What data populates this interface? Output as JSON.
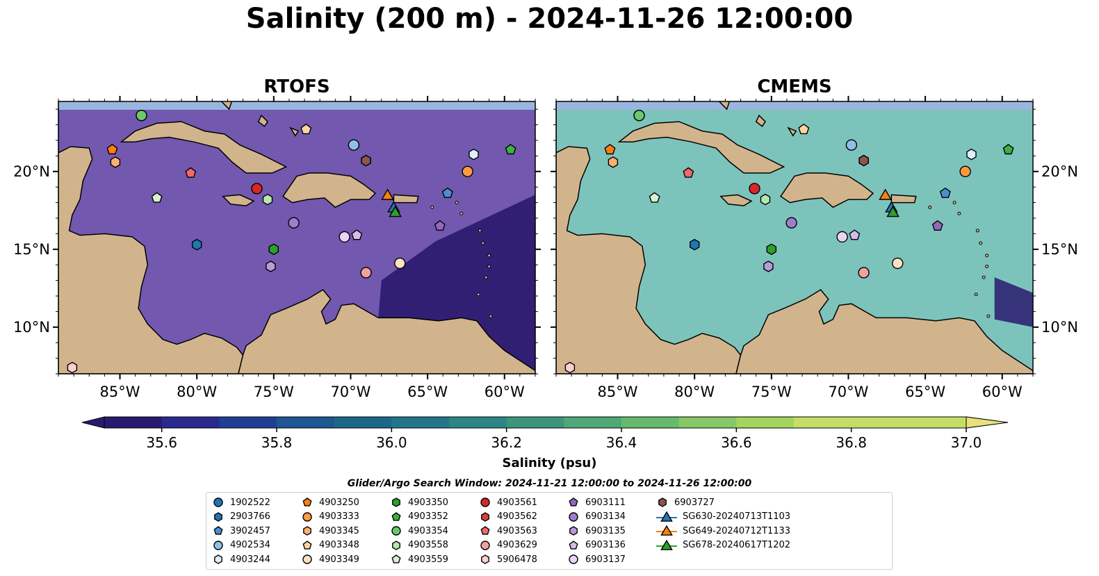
{
  "title": "Salinity (200 m) - 2024-11-26 12:00:00",
  "panels": [
    {
      "title": "RTOFS",
      "variant": "rtofs"
    },
    {
      "title": "CMEMS",
      "variant": "cmems"
    }
  ],
  "axes": {
    "lon_range": [
      -89,
      -58
    ],
    "lat_range": [
      7,
      24.5
    ],
    "x_ticks": [
      {
        "value": -85,
        "label": "85°W"
      },
      {
        "value": -80,
        "label": "80°W"
      },
      {
        "value": -75,
        "label": "75°W"
      },
      {
        "value": -70,
        "label": "70°W"
      },
      {
        "value": -65,
        "label": "65°W"
      },
      {
        "value": -60,
        "label": "60°W"
      }
    ],
    "y_ticks": [
      {
        "value": 10,
        "label": "10°N"
      },
      {
        "value": 15,
        "label": "15°N"
      },
      {
        "value": 20,
        "label": "20°N"
      }
    ]
  },
  "colorbar": {
    "label": "Salinity (psu)",
    "min": 35.5,
    "max": 37.0,
    "step": 0.1,
    "ticks": [
      {
        "value": 35.6,
        "label": "35.6"
      },
      {
        "value": 35.8,
        "label": "35.8"
      },
      {
        "value": 36.0,
        "label": "36.0"
      },
      {
        "value": 36.2,
        "label": "36.2"
      },
      {
        "value": 36.4,
        "label": "36.4"
      },
      {
        "value": 36.6,
        "label": "36.6"
      },
      {
        "value": 36.8,
        "label": "36.8"
      },
      {
        "value": 37.0,
        "label": "37.0"
      }
    ],
    "colors": [
      "#2a1a6e",
      "#2a2a8e",
      "#1f3f94",
      "#1d5690",
      "#1c668c",
      "#237689",
      "#2c8584",
      "#3a957c",
      "#50a777",
      "#67b96d",
      "#86c766",
      "#a4d45c",
      "#c6dd65",
      "#e6e17a"
    ]
  },
  "search_window": "Glider/Argo Search Window: 2024-11-21 12:00:00 to 2024-11-26 12:00:00",
  "legend": [
    {
      "label": "1902522",
      "marker": "circle",
      "color": "#1f77b4"
    },
    {
      "label": "2903766",
      "marker": "hexagon",
      "color": "#1f77b4"
    },
    {
      "label": "3902457",
      "marker": "pentagon",
      "color": "#4a90d0"
    },
    {
      "label": "4902534",
      "marker": "circle",
      "color": "#8fbfe6"
    },
    {
      "label": "4903244",
      "marker": "hexagon",
      "color": "#dceefb"
    },
    {
      "label": "4903250",
      "marker": "pentagon",
      "color": "#ff7f0e"
    },
    {
      "label": "4903333",
      "marker": "circle",
      "color": "#ff9a40"
    },
    {
      "label": "4903345",
      "marker": "hexagon",
      "color": "#ffb070"
    },
    {
      "label": "4903348",
      "marker": "pentagon",
      "color": "#ffd4a0"
    },
    {
      "label": "4903349",
      "marker": "circle",
      "color": "#ffe2c2"
    },
    {
      "label": "4903350",
      "marker": "hexagon",
      "color": "#2ca02c"
    },
    {
      "label": "4903352",
      "marker": "pentagon",
      "color": "#3cb043"
    },
    {
      "label": "4903354",
      "marker": "circle",
      "color": "#6cc86c"
    },
    {
      "label": "4903558",
      "marker": "hexagon",
      "color": "#b8e6b0"
    },
    {
      "label": "4903559",
      "marker": "pentagon",
      "color": "#d8f2d0"
    },
    {
      "label": "4903561",
      "marker": "circle",
      "color": "#d62728"
    },
    {
      "label": "4903562",
      "marker": "hexagon",
      "color": "#d8403a"
    },
    {
      "label": "4903563",
      "marker": "pentagon",
      "color": "#f06868"
    },
    {
      "label": "4903629",
      "marker": "circle",
      "color": "#f2a0a0"
    },
    {
      "label": "5906478",
      "marker": "hexagon",
      "color": "#fbd0d0"
    },
    {
      "label": "6903111",
      "marker": "pentagon",
      "color": "#9467bd"
    },
    {
      "label": "6903134",
      "marker": "circle",
      "color": "#a07ccc"
    },
    {
      "label": "6903135",
      "marker": "hexagon",
      "color": "#b89ad8"
    },
    {
      "label": "6903136",
      "marker": "pentagon",
      "color": "#d4bce8"
    },
    {
      "label": "6903137",
      "marker": "circle",
      "color": "#e8d4f4"
    },
    {
      "label": "6903727",
      "marker": "hexagon",
      "color": "#8c564b"
    },
    {
      "label": "SG630-20240713T1103",
      "marker": "triangle-line",
      "color": "#1f77b4"
    },
    {
      "label": "SG649-20240712T1133",
      "marker": "triangle-line",
      "color": "#ff7f0e"
    },
    {
      "label": "SG678-20240617T1202",
      "marker": "triangle-line",
      "color": "#2ca02c"
    }
  ],
  "observations": [
    {
      "label": "1902522",
      "lon": -83.6,
      "lat": 23.6
    },
    {
      "label": "2903766",
      "lon": -80.0,
      "lat": 15.3
    },
    {
      "label": "3902457",
      "lon": -63.7,
      "lat": 18.6
    },
    {
      "label": "4902534",
      "lon": -69.8,
      "lat": 21.7
    },
    {
      "label": "4903244",
      "lon": -62.0,
      "lat": 21.1
    },
    {
      "label": "4903250",
      "lon": -85.5,
      "lat": 21.4
    },
    {
      "label": "4903333",
      "lon": -62.4,
      "lat": 20.0
    },
    {
      "label": "4903345",
      "lon": -85.3,
      "lat": 20.6
    },
    {
      "label": "4903348",
      "lon": -72.9,
      "lat": 22.7
    },
    {
      "label": "4903349",
      "lon": -66.8,
      "lat": 14.1
    },
    {
      "label": "4903350",
      "lon": -75.0,
      "lat": 15.0
    },
    {
      "label": "4903352",
      "lon": -59.6,
      "lat": 21.4
    },
    {
      "label": "4903354",
      "lon": -83.6,
      "lat": 23.6
    },
    {
      "label": "4903558",
      "lon": -75.4,
      "lat": 18.2
    },
    {
      "label": "4903559",
      "lon": -82.6,
      "lat": 18.3
    },
    {
      "label": "4903561",
      "lon": -76.1,
      "lat": 18.9
    },
    {
      "label": "4903562",
      "lon": -69.0,
      "lat": 20.7
    },
    {
      "label": "4903563",
      "lon": -80.4,
      "lat": 19.9
    },
    {
      "label": "4903629",
      "lon": -69.0,
      "lat": 13.5
    },
    {
      "label": "5906478",
      "lon": -88.1,
      "lat": 7.4
    },
    {
      "label": "6903111",
      "lon": -64.2,
      "lat": 16.5
    },
    {
      "label": "6903134",
      "lon": -73.7,
      "lat": 16.7
    },
    {
      "label": "6903135",
      "lon": -75.2,
      "lat": 13.9
    },
    {
      "label": "6903136",
      "lon": -69.6,
      "lat": 15.9
    },
    {
      "label": "6903137",
      "lon": -70.4,
      "lat": 15.8
    },
    {
      "label": "6903727",
      "lon": -69.0,
      "lat": 20.7
    },
    {
      "label": "SG630-20240713T1103",
      "lon": -67.2,
      "lat": 17.7
    },
    {
      "label": "SG649-20240712T1133",
      "lon": -67.6,
      "lat": 18.5
    },
    {
      "label": "SG678-20240617T1202",
      "lon": -67.1,
      "lat": 17.4
    }
  ]
}
